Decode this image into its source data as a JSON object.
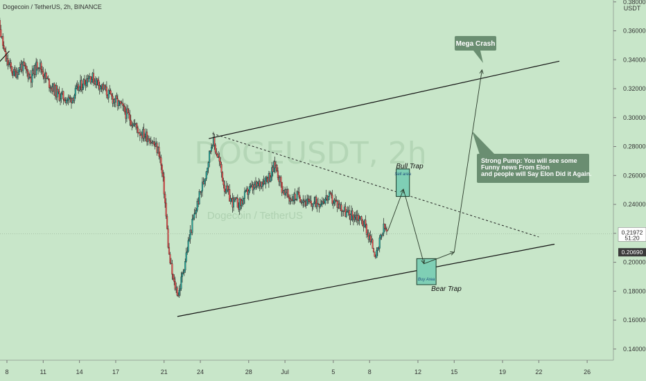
{
  "header": {
    "title": "Dogecoin / TetherUS, 2h, BINANCE"
  },
  "watermark": {
    "main": "DOGEUSDT, 2h",
    "sub": "Dogecoin / TetherUS"
  },
  "chart_data": {
    "type": "candlestick",
    "y_unit": "USDT",
    "ylim": [
      0.13,
      0.38
    ],
    "y_ticks": [
      "0.14000",
      "0.16000",
      "0.18000",
      "0.20000",
      "0.22000",
      "0.24000",
      "0.26000",
      "0.28000",
      "0.30000",
      "0.32000",
      "0.34000",
      "0.36000",
      "0.38000"
    ],
    "y_tick_values": [
      0.14,
      0.16,
      0.18,
      0.2,
      0.22,
      0.24,
      0.26,
      0.28,
      0.3,
      0.32,
      0.34,
      0.36,
      0.38
    ],
    "x_ticks": [
      "8",
      "11",
      "14",
      "17",
      "21",
      "24",
      "28",
      "Jul",
      "5",
      "8",
      "12",
      "15",
      "19",
      "22",
      "26"
    ],
    "x_tick_days": [
      8,
      11,
      14,
      17,
      21,
      24,
      28,
      31,
      35,
      38,
      42,
      45,
      49,
      52,
      56
    ],
    "price_path": [
      [
        7.0,
        0.372
      ],
      [
        7.4,
        0.362
      ],
      [
        7.9,
        0.34
      ],
      [
        8.6,
        0.33
      ],
      [
        9.2,
        0.336
      ],
      [
        10.0,
        0.328
      ],
      [
        10.6,
        0.338
      ],
      [
        11.3,
        0.326
      ],
      [
        12.2,
        0.316
      ],
      [
        13.2,
        0.312
      ],
      [
        14.1,
        0.322
      ],
      [
        14.8,
        0.329
      ],
      [
        15.6,
        0.324
      ],
      [
        16.4,
        0.316
      ],
      [
        17.4,
        0.308
      ],
      [
        18.2,
        0.299
      ],
      [
        19.0,
        0.29
      ],
      [
        19.8,
        0.286
      ],
      [
        20.6,
        0.276
      ],
      [
        21.0,
        0.25
      ],
      [
        21.4,
        0.205
      ],
      [
        21.8,
        0.185
      ],
      [
        22.2,
        0.178
      ],
      [
        22.6,
        0.195
      ],
      [
        23.2,
        0.222
      ],
      [
        23.8,
        0.242
      ],
      [
        24.4,
        0.26
      ],
      [
        25.0,
        0.285
      ],
      [
        25.5,
        0.272
      ],
      [
        26.0,
        0.252
      ],
      [
        26.6,
        0.242
      ],
      [
        27.3,
        0.24
      ],
      [
        28.0,
        0.25
      ],
      [
        28.6,
        0.252
      ],
      [
        29.2,
        0.257
      ],
      [
        29.8,
        0.26
      ],
      [
        30.2,
        0.268
      ],
      [
        30.8,
        0.25
      ],
      [
        31.4,
        0.244
      ],
      [
        32.2,
        0.246
      ],
      [
        33.0,
        0.24
      ],
      [
        33.8,
        0.242
      ],
      [
        34.6,
        0.245
      ],
      [
        35.4,
        0.24
      ],
      [
        36.2,
        0.233
      ],
      [
        37.0,
        0.232
      ],
      [
        37.6,
        0.226
      ],
      [
        38.2,
        0.212
      ],
      [
        38.6,
        0.204
      ],
      [
        38.9,
        0.216
      ],
      [
        39.2,
        0.224
      ],
      [
        39.5,
        0.22
      ]
    ],
    "current_price": {
      "value": "0.21972",
      "countdown": "51:20",
      "y": 0.21972
    },
    "marked_price": {
      "value": "0.20690",
      "y": 0.2069
    },
    "annotations": {
      "bull_trap": "Bull Trap",
      "sell_area": "Sell area",
      "bear_trap": "Bear Trap",
      "buy_area": "Buy Area",
      "mega_crash": "Mega Crash",
      "strong_pump": [
        "Strong Pump: You will see some",
        "Funny news From Elon",
        "and people will Say Elon Did it Again."
      ]
    },
    "trendlines": {
      "upper_channel": [
        [
          24.7,
          0.2855
        ],
        [
          53.7,
          0.339
        ]
      ],
      "lower_channel": [
        [
          22.1,
          0.1625
        ],
        [
          53.3,
          0.2125
        ]
      ],
      "resistance_dashed": [
        [
          25.0,
          0.289
        ],
        [
          52.0,
          0.2175
        ]
      ],
      "short_dark_line": [
        [
          7.0,
          0.335
        ],
        [
          8.2,
          0.346
        ]
      ]
    },
    "projection_path": [
      [
        39.5,
        0.2215
      ],
      [
        40.8,
        0.2505
      ],
      [
        42.5,
        0.199
      ],
      [
        45.0,
        0.207
      ],
      [
        47.3,
        0.333
      ]
    ],
    "sell_box_range": [
      40.2,
      41.3,
      0.2455,
      0.2645
    ],
    "buy_box_range": [
      41.9,
      43.5,
      0.1845,
      0.2025
    ]
  }
}
